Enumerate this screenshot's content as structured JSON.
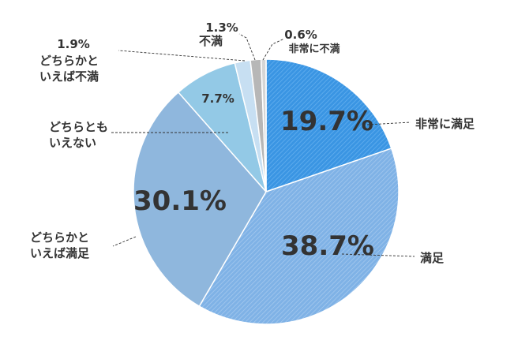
{
  "chart_data": {
    "type": "pie",
    "start": "12 o'clock, clockwise",
    "slices": [
      {
        "label": "非常に満足",
        "value": 19.7,
        "value_text": "19.7%",
        "color": "#3a95e3",
        "hatch": true
      },
      {
        "label": "満足",
        "value": 38.7,
        "value_text": "38.7%",
        "color": "#7fb2e6",
        "hatch": true
      },
      {
        "label": "どちらかと\nいえば満足",
        "value": 30.1,
        "value_text": "30.1%",
        "color": "#8fb7dd",
        "hatch": false
      },
      {
        "label": "どちらとも\nいえない",
        "value": 7.7,
        "value_text": "7.7%",
        "color": "#93c9e6",
        "hatch": false
      },
      {
        "label": "どちらかと\nいえば不満",
        "value": 1.9,
        "value_text": "1.9%",
        "color": "#c7dff2",
        "hatch": false
      },
      {
        "label": "不満",
        "value": 1.3,
        "value_text": "1.3%",
        "color": "#b7b7b7",
        "hatch": false
      },
      {
        "label": "非常に不満",
        "value": 0.6,
        "value_text": "0.6%",
        "color": "#d6d6d6",
        "hatch": false
      }
    ],
    "legend": "none (leader-line labels)"
  }
}
